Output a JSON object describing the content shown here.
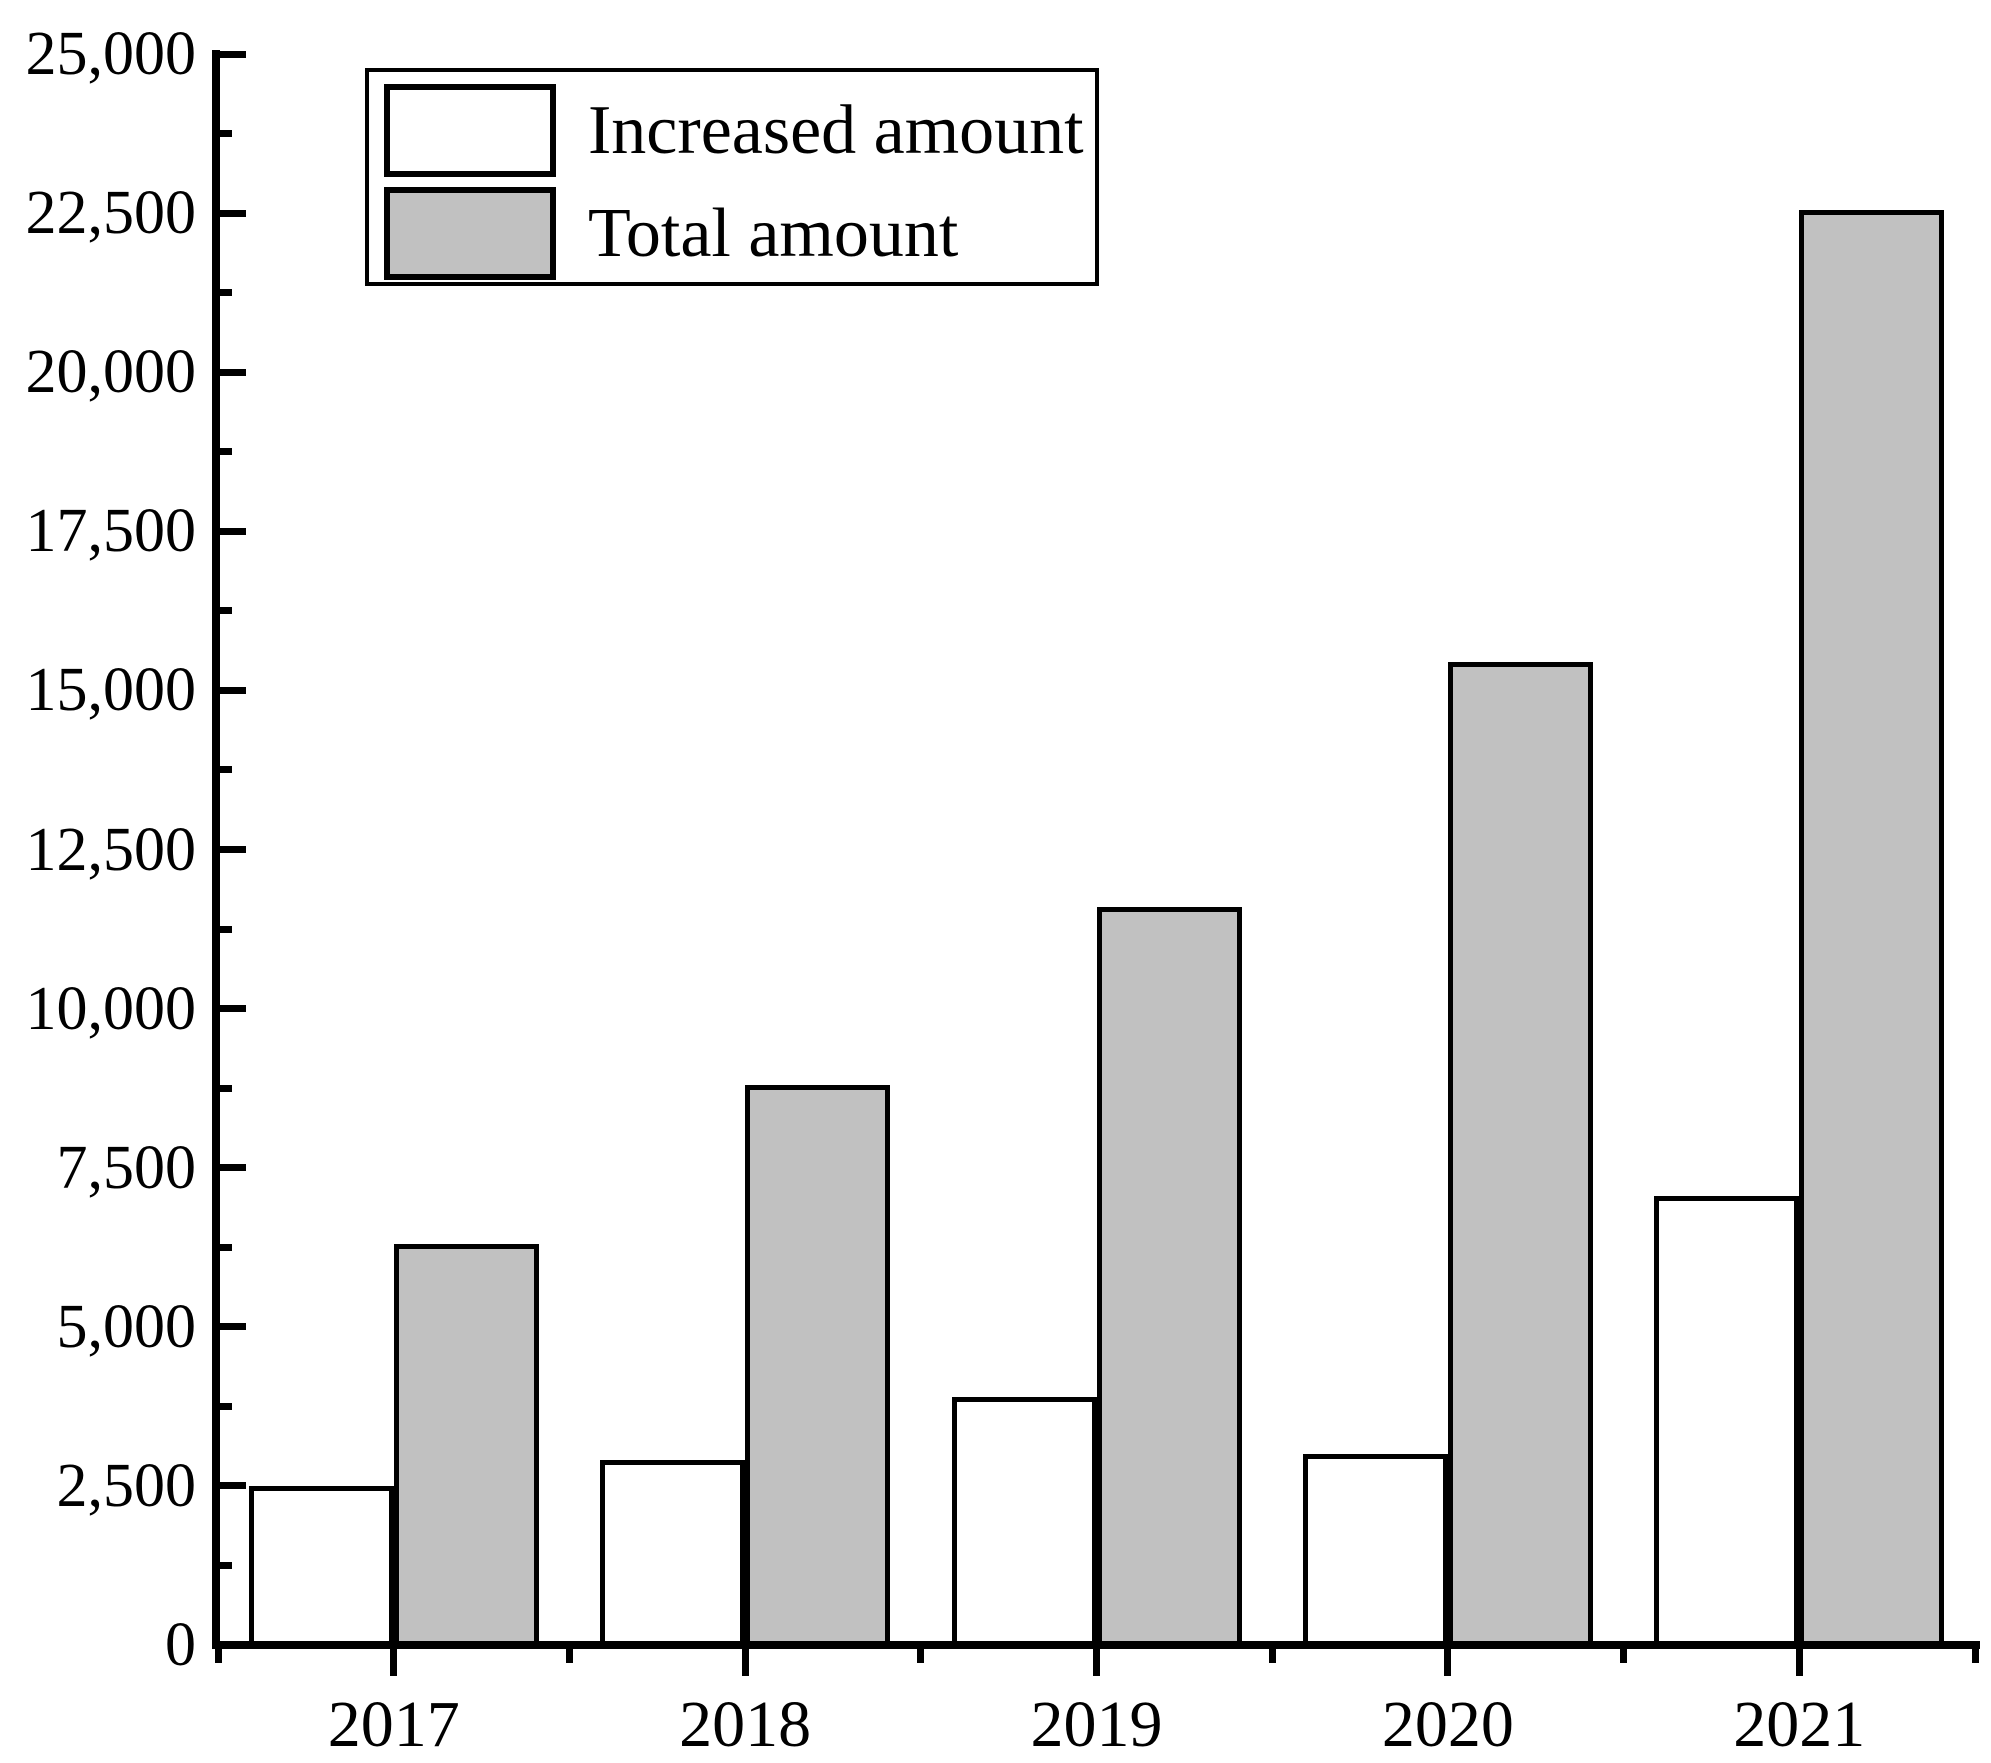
{
  "chart_data": {
    "type": "bar",
    "title": "",
    "xlabel": "",
    "ylabel": "",
    "categories": [
      "2017",
      "2018",
      "2019",
      "2020",
      "2021"
    ],
    "series": [
      {
        "name": "Increased amount",
        "fill": "#ffffff",
        "values": [
          2500,
          2900,
          3900,
          3000,
          7050
        ]
      },
      {
        "name": "Total amount",
        "fill": "#c1c1c1",
        "values": [
          6300,
          8800,
          11600,
          15450,
          22550
        ]
      }
    ],
    "ylim": [
      0,
      25000
    ],
    "y_major_step": 2500,
    "y_minor_step": 1250,
    "y_tick_labels": [
      "0",
      "2,500",
      "5,000",
      "7,500",
      "10,000",
      "12,500",
      "15,000",
      "17,500",
      "20,000",
      "22,500",
      "25,000"
    ],
    "grid": false,
    "legend_position": "top-left",
    "axis_color": "#000000",
    "bar_border_color": "#000000",
    "background_color": "#ffffff"
  },
  "legend": {
    "items": [
      {
        "label": "Increased amount",
        "fill": "#ffffff"
      },
      {
        "label": "Total amount",
        "fill": "#c1c1c1"
      }
    ]
  }
}
